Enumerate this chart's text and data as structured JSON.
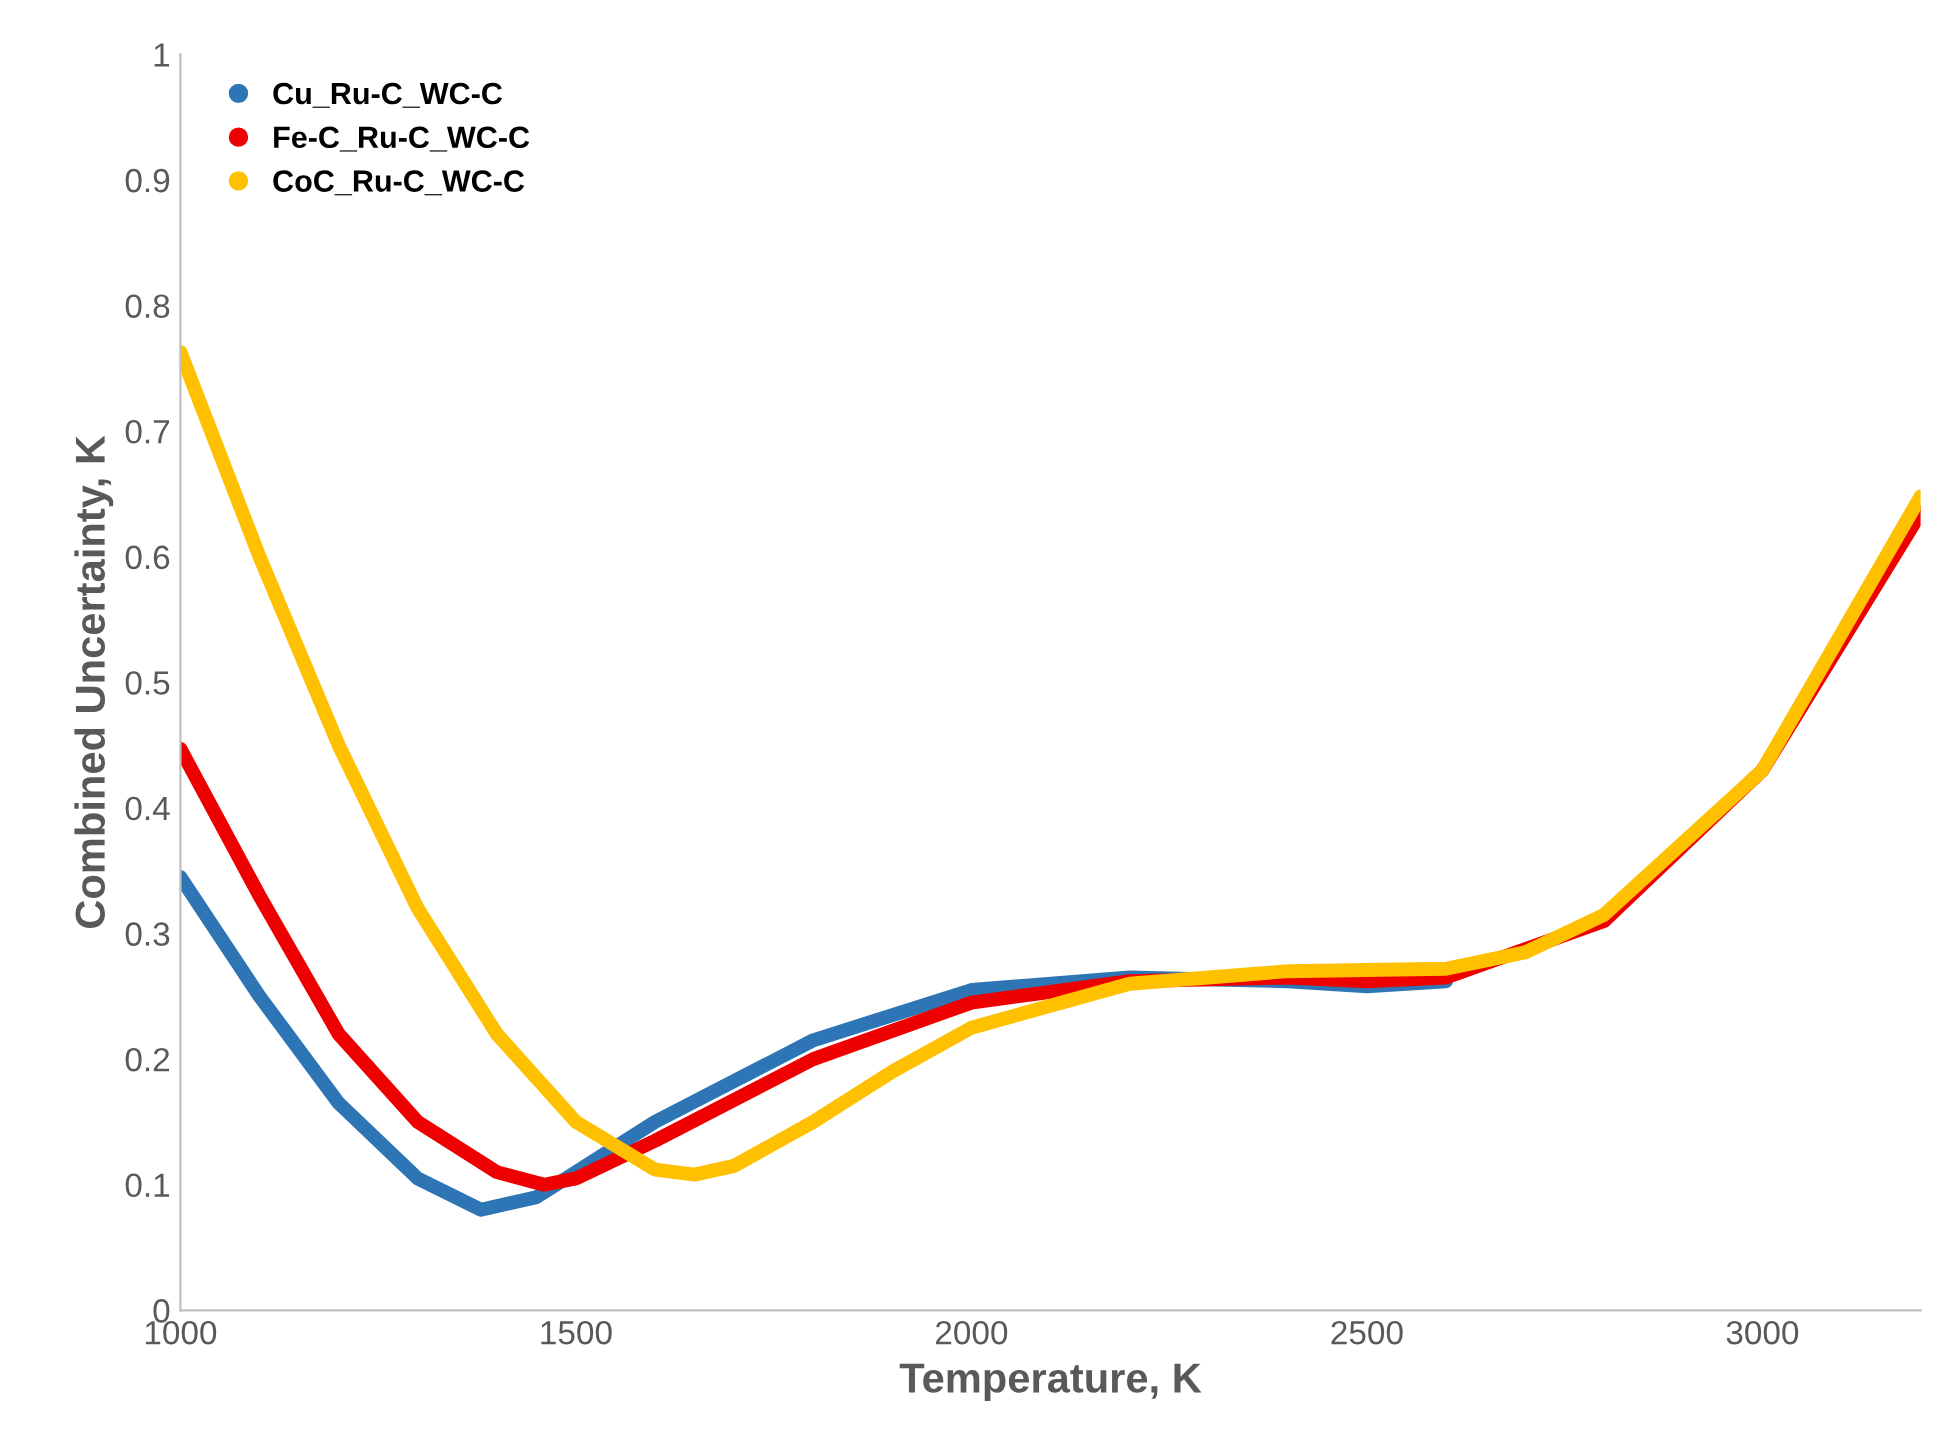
{
  "chart_data": {
    "type": "line",
    "xlabel": "Temperature, K",
    "ylabel": "Combined Uncertainty, K",
    "xlim": [
      1000,
      3200
    ],
    "xticks": [
      1000,
      1500,
      2000,
      2500,
      3000
    ],
    "ylim": [
      0,
      1
    ],
    "yticks": [
      0,
      0.1,
      0.2,
      0.3,
      0.4,
      0.5,
      0.6,
      0.7,
      0.8,
      0.9,
      1
    ],
    "grid": false,
    "legend": "top left",
    "marker": "none",
    "line_style": "solid",
    "series": [
      {
        "name": "Cu_Ru-C_WC-C",
        "color": "#2e75b6",
        "x": [
          1000,
          1100,
          1200,
          1300,
          1380,
          1450,
          1500,
          1600,
          1800,
          2000,
          2200,
          2400,
          2500,
          2600
        ],
        "values": [
          0.345,
          0.25,
          0.165,
          0.105,
          0.08,
          0.09,
          0.11,
          0.15,
          0.215,
          0.255,
          0.265,
          0.262,
          0.258,
          0.262
        ]
      },
      {
        "name": "Fe-C_Ru-C_WC-C",
        "color": "#ee0000",
        "x": [
          1000,
          1100,
          1200,
          1300,
          1400,
          1460,
          1500,
          1600,
          1800,
          2000,
          2200,
          2400,
          2500,
          2600,
          2800,
          3000,
          3200
        ],
        "values": [
          0.447,
          0.33,
          0.22,
          0.15,
          0.11,
          0.1,
          0.105,
          0.135,
          0.2,
          0.245,
          0.262,
          0.265,
          0.262,
          0.265,
          0.31,
          0.43,
          0.635
        ]
      },
      {
        "name": "CoC_Ru-C_WC-C",
        "color": "#ffc000",
        "x": [
          1000,
          1100,
          1200,
          1300,
          1400,
          1500,
          1600,
          1650,
          1700,
          1800,
          1900,
          2000,
          2200,
          2400,
          2600,
          2700,
          2800,
          3000,
          3200
        ],
        "values": [
          0.763,
          0.6,
          0.45,
          0.32,
          0.22,
          0.15,
          0.112,
          0.108,
          0.115,
          0.15,
          0.19,
          0.225,
          0.26,
          0.27,
          0.272,
          0.285,
          0.315,
          0.43,
          0.648
        ]
      }
    ]
  }
}
